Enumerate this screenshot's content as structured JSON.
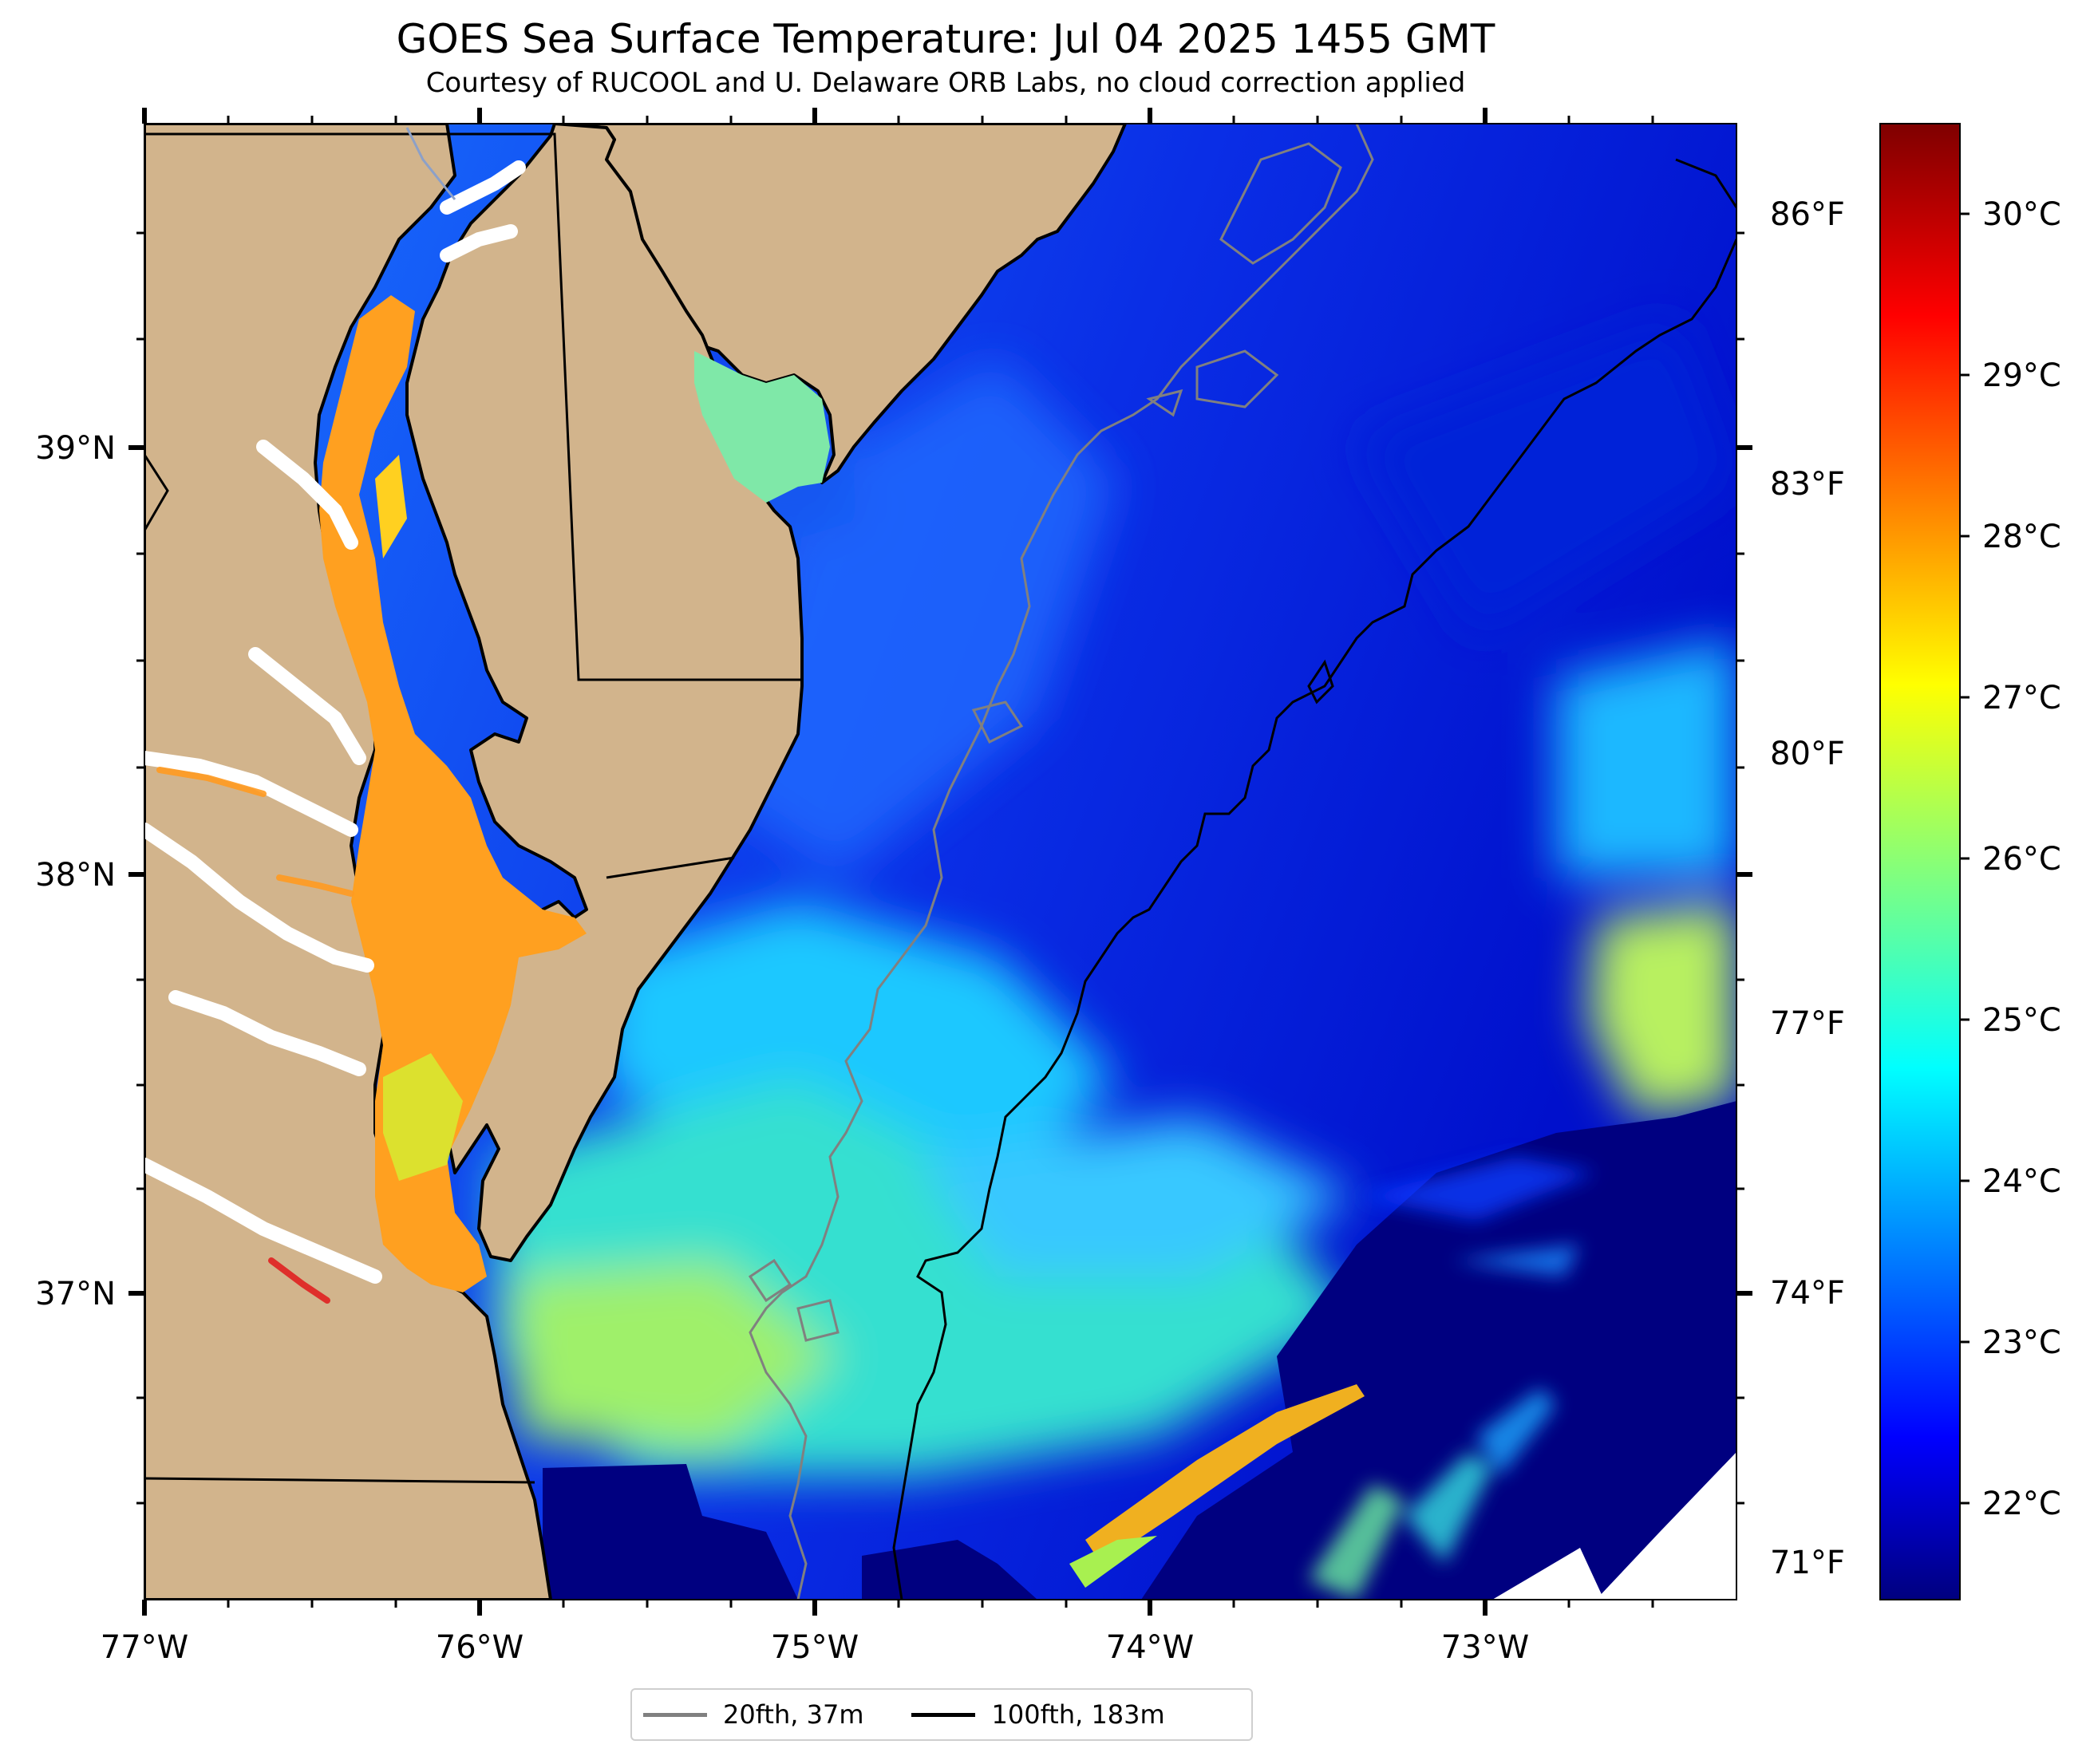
{
  "title": "GOES Sea Surface Temperature: Jul 04 2025 1455 GMT",
  "subtitle": "Courtesy of RUCOOL and U. Delaware ORB Labs, no cloud correction applied",
  "map": {
    "lon_range": [
      -77.0,
      -72.25
    ],
    "lat_range": [
      36.3,
      39.75
    ],
    "lon_ticks": [
      "77°W",
      "76°W",
      "75°W",
      "74°W",
      "73°W"
    ],
    "lat_ticks": [
      "39°N",
      "38°N",
      "37°N"
    ],
    "land_color": "#d2b48c",
    "ocean_cold_color": "#000080"
  },
  "colorbar": {
    "celsius_labels": [
      "30°C",
      "29°C",
      "28°C",
      "27°C",
      "26°C",
      "25°C",
      "24°C",
      "23°C",
      "22°C"
    ],
    "fahrenheit_labels": [
      "86°F",
      "83°F",
      "80°F",
      "77°F",
      "74°F",
      "71°F"
    ],
    "range_celsius": [
      21.5,
      30.5
    ],
    "colormap": "jet"
  },
  "legend": {
    "items": [
      {
        "label": "20fth, 37m",
        "color": "#808080"
      },
      {
        "label": "100fth, 183m",
        "color": "#000000"
      }
    ]
  }
}
